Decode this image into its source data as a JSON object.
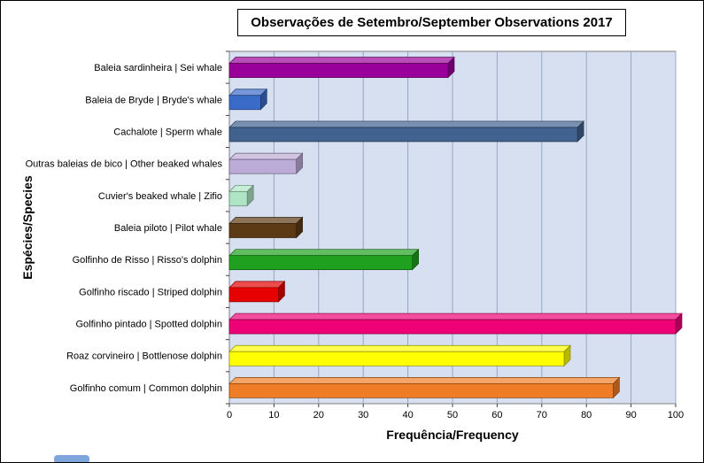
{
  "chart_data": {
    "type": "bar",
    "orientation": "horizontal",
    "style": "3d",
    "title": "Observações de Setembro/September Observations 2017",
    "xlabel": "Frequência/Frequency",
    "ylabel": "Espécies/Species",
    "xlim": [
      0,
      100
    ],
    "xticks": [
      0,
      10,
      20,
      30,
      40,
      50,
      60,
      70,
      80,
      90,
      100
    ],
    "grid": true,
    "legend": "none",
    "plot_background": "#D6E0F0",
    "gridline_color": "#97A6C2",
    "axis_color": "#808080",
    "categories": [
      "Baleia sardinheira | Sei whale",
      "Baleia de Bryde | Bryde's whale",
      "Cachalote | Sperm whale",
      "Outras baleias de bico | Other beaked whales",
      "Cuvier's beaked whale | Zifio",
      "Baleia piloto | Pilot whale",
      "Golfinho de Risso | Risso's dolphin",
      "Golfinho riscado | Striped dolphin",
      "Golfinho pintado | Spotted dolphin",
      "Roaz corvineiro | Bottlenose dolphin",
      "Golfinho comum | Common dolphin"
    ],
    "values": [
      49,
      7,
      78,
      15,
      4,
      15,
      41,
      11,
      100,
      75,
      86
    ],
    "colors": [
      "#990099",
      "#3A6BC8",
      "#41618E",
      "#BCABD6",
      "#AEE5C5",
      "#5C3A14",
      "#1FA11F",
      "#E60000",
      "#EE0077",
      "#FFFF00",
      "#EE7D26"
    ]
  }
}
